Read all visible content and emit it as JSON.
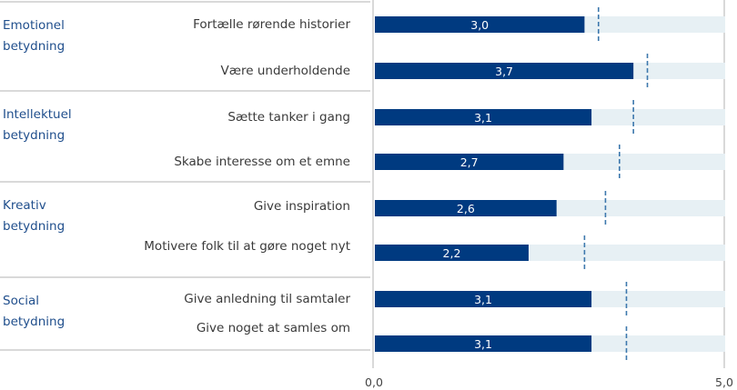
{
  "chart_data": {
    "type": "bar",
    "orientation": "horizontal",
    "title": "",
    "xlabel": "",
    "ylabel": "",
    "xlim": [
      0,
      5
    ],
    "x_ticks": [
      "0,0",
      "5,0"
    ],
    "colors": {
      "bar": "#003a80",
      "track": "#e7f0f4",
      "marker": "#3d78ad",
      "group_text": "#1f4e8c",
      "grid": "#d9d9d9"
    },
    "groups": [
      {
        "label_lines": [
          "Emotionel",
          "betydning"
        ],
        "items": [
          {
            "label": "Fortælle rørende historier",
            "value": 3.0,
            "value_label": "3,0",
            "marker": 3.2
          },
          {
            "label": "Være underholdende",
            "value": 3.7,
            "value_label": "3,7",
            "marker": 3.9
          }
        ]
      },
      {
        "label_lines": [
          "Intellektuel",
          "betydning"
        ],
        "items": [
          {
            "label": "Sætte tanker i gang",
            "value": 3.1,
            "value_label": "3,1",
            "marker": 3.7
          },
          {
            "label": "Skabe interesse om et emne",
            "value": 2.7,
            "value_label": "2,7",
            "marker": 3.5
          }
        ]
      },
      {
        "label_lines": [
          "Kreativ",
          "betydning"
        ],
        "items": [
          {
            "label": "Give inspiration",
            "value": 2.6,
            "value_label": "2,6",
            "marker": 3.3
          },
          {
            "label": "Motivere folk til at gøre noget nyt",
            "value": 2.2,
            "value_label": "2,2",
            "marker": 3.0
          }
        ]
      },
      {
        "label_lines": [
          "Social",
          "betydning"
        ],
        "items": [
          {
            "label": "Give anledning til samtaler",
            "value": 3.1,
            "value_label": "3,1",
            "marker": 3.6
          },
          {
            "label": "Give noget at samles om",
            "value": 3.1,
            "value_label": "3,1",
            "marker": 3.6
          }
        ]
      }
    ]
  }
}
